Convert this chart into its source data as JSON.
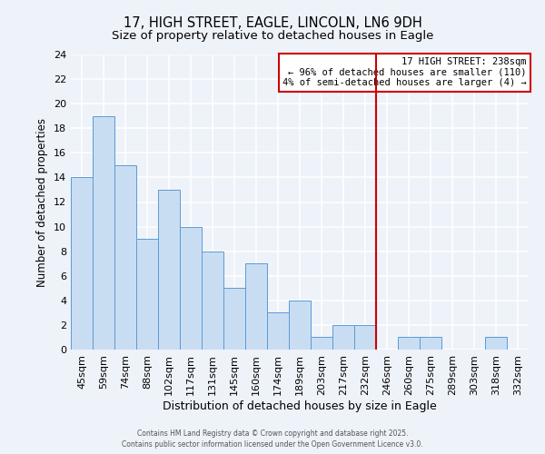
{
  "title": "17, HIGH STREET, EAGLE, LINCOLN, LN6 9DH",
  "subtitle": "Size of property relative to detached houses in Eagle",
  "xlabel": "Distribution of detached houses by size in Eagle",
  "ylabel": "Number of detached properties",
  "categories": [
    "45sqm",
    "59sqm",
    "74sqm",
    "88sqm",
    "102sqm",
    "117sqm",
    "131sqm",
    "145sqm",
    "160sqm",
    "174sqm",
    "189sqm",
    "203sqm",
    "217sqm",
    "232sqm",
    "246sqm",
    "260sqm",
    "275sqm",
    "289sqm",
    "303sqm",
    "318sqm",
    "332sqm"
  ],
  "values": [
    14,
    19,
    15,
    9,
    13,
    10,
    8,
    5,
    7,
    3,
    4,
    1,
    2,
    2,
    0,
    1,
    1,
    0,
    0,
    1,
    0
  ],
  "bar_color": "#c9ddf2",
  "bar_edge_color": "#5b9bd5",
  "vline_index": 14,
  "vline_color": "#cc0000",
  "ylim": [
    0,
    24
  ],
  "yticks": [
    0,
    2,
    4,
    6,
    8,
    10,
    12,
    14,
    16,
    18,
    20,
    22,
    24
  ],
  "annotation_title": "17 HIGH STREET: 238sqm",
  "annotation_line1": "← 96% of detached houses are smaller (110)",
  "annotation_line2": "4% of semi-detached houses are larger (4) →",
  "annotation_box_color": "#ffffff",
  "annotation_border_color": "#cc0000",
  "footer1": "Contains HM Land Registry data © Crown copyright and database right 2025.",
  "footer2": "Contains public sector information licensed under the Open Government Licence v3.0.",
  "background_color": "#eef2f9",
  "grid_color": "#ffffff",
  "title_fontsize": 10.5,
  "subtitle_fontsize": 9.5,
  "xlabel_fontsize": 9,
  "ylabel_fontsize": 8.5,
  "tick_fontsize": 8,
  "annotation_fontsize": 7.5,
  "footer_fontsize": 5.5
}
